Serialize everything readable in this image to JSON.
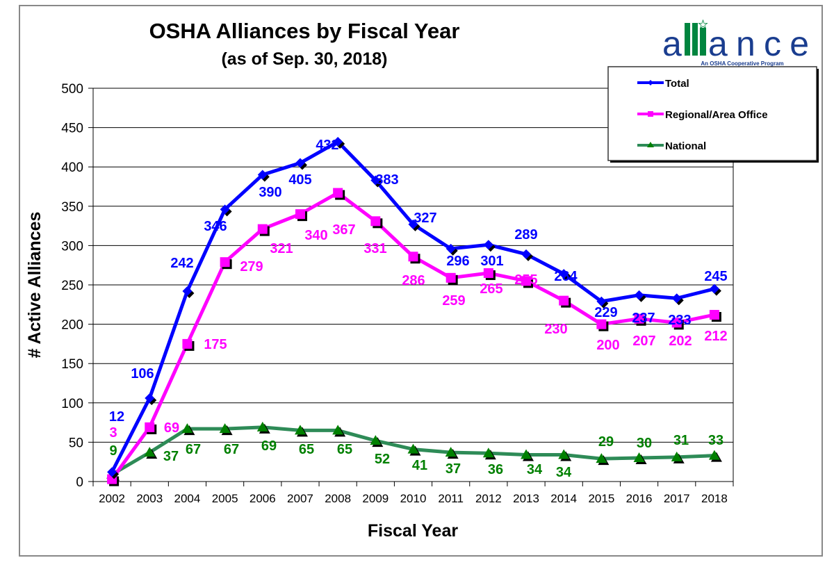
{
  "logo": {
    "word": "alliance",
    "tagline": "An OSHA Cooperative Program"
  },
  "chart_data": {
    "type": "line",
    "title": "OSHA Alliances by Fiscal Year",
    "subtitle": "(as of Sep. 30, 2018)",
    "xlabel": "Fiscal Year",
    "ylabel": "# Active Alliances",
    "ylim": [
      0,
      500
    ],
    "yticks": [
      0,
      50,
      100,
      150,
      200,
      250,
      300,
      350,
      400,
      450,
      500
    ],
    "grid": true,
    "legend_position": "top-right",
    "categories": [
      "2002",
      "2003",
      "2004",
      "2005",
      "2006",
      "2007",
      "2008",
      "2009",
      "2010",
      "2011",
      "2012",
      "2013",
      "2014",
      "2015",
      "2016",
      "2017",
      "2018"
    ],
    "series": [
      {
        "name": "Total",
        "color": "#0000FF",
        "marker": "diamond",
        "values": [
          12,
          106,
          242,
          346,
          390,
          405,
          432,
          383,
          327,
          296,
          301,
          289,
          264,
          229,
          237,
          233,
          245
        ]
      },
      {
        "name": "Regional/Area Office",
        "color": "#FF00FF",
        "marker": "square",
        "values": [
          3,
          69,
          175,
          279,
          321,
          340,
          367,
          331,
          286,
          259,
          265,
          255,
          230,
          200,
          207,
          202,
          212
        ]
      },
      {
        "name": "National",
        "color": "#2E8B57",
        "label_color": "#008000",
        "marker": "triangle",
        "values": [
          9,
          37,
          67,
          67,
          69,
          65,
          65,
          52,
          41,
          37,
          36,
          34,
          34,
          29,
          30,
          31,
          33
        ]
      }
    ]
  }
}
